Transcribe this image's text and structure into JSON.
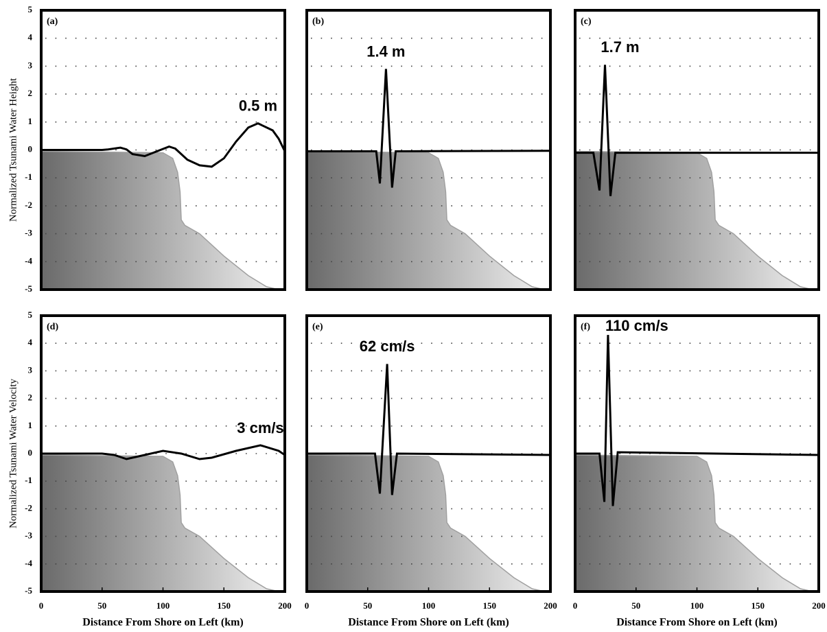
{
  "chart_data": [
    {
      "type": "line",
      "label": "(a)",
      "y_label": "Normalized Tsunami Water Height",
      "xlim": [
        0,
        200
      ],
      "ylim": [
        -5,
        5
      ],
      "yticks": [
        -5,
        -4,
        -3,
        -2,
        -1,
        0,
        1,
        2,
        3,
        4,
        5
      ],
      "ytick_labels": true,
      "grid": true,
      "series": [
        {
          "type": "line",
          "color": "#000000",
          "x": [
            0,
            20,
            40,
            50,
            55,
            65,
            70,
            75,
            85,
            95,
            105,
            110,
            120,
            130,
            140,
            150,
            160,
            170,
            178,
            190,
            195,
            200
          ],
          "values": [
            0,
            0,
            0,
            0,
            0.02,
            0.08,
            0.02,
            -0.15,
            -0.22,
            -0.05,
            0.12,
            0.05,
            -0.35,
            -0.55,
            -0.6,
            -0.3,
            0.3,
            0.8,
            0.95,
            0.7,
            0.4,
            -0.05
          ]
        },
        {
          "type": "area",
          "color": "#a0a0a0",
          "x": [
            0,
            100,
            108,
            112,
            114,
            115,
            118,
            130,
            150,
            170,
            185,
            195,
            200
          ],
          "values": [
            -0.05,
            -0.1,
            -0.3,
            -0.8,
            -1.5,
            -2.5,
            -2.7,
            -3.0,
            -3.8,
            -4.5,
            -4.9,
            -5.0,
            -5.0
          ]
        }
      ],
      "annotations": [
        {
          "text": "0.5 m",
          "color": "#f03c1e"
        }
      ]
    },
    {
      "type": "line",
      "label": "(b)",
      "xlim": [
        0,
        200
      ],
      "ylim": [
        -5,
        5
      ],
      "yticks": [
        -5,
        -4,
        -3,
        -2,
        -1,
        0,
        1,
        2,
        3,
        4,
        5
      ],
      "ytick_labels": false,
      "grid": true,
      "series": [
        {
          "type": "line",
          "color": "#000000",
          "x": [
            0,
            57,
            60,
            65,
            70,
            73,
            200
          ],
          "values": [
            -0.05,
            -0.05,
            -1.2,
            2.9,
            -1.35,
            -0.05,
            -0.03
          ]
        },
        {
          "type": "area",
          "color": "#a0a0a0",
          "x": [
            0,
            100,
            108,
            112,
            114,
            115,
            118,
            130,
            150,
            170,
            185,
            195,
            200
          ],
          "values": [
            -0.05,
            -0.1,
            -0.3,
            -0.8,
            -1.5,
            -2.5,
            -2.7,
            -3.0,
            -3.8,
            -4.5,
            -4.9,
            -5.0,
            -5.0
          ]
        }
      ],
      "annotations": [
        {
          "text": "1.4 m",
          "color": "#f03c1e"
        }
      ]
    },
    {
      "type": "line",
      "label": "(c)",
      "xlim": [
        0,
        200
      ],
      "ylim": [
        -5,
        5
      ],
      "yticks": [
        -5,
        -4,
        -3,
        -2,
        -1,
        0,
        1,
        2,
        3,
        4,
        5
      ],
      "ytick_labels": false,
      "grid": true,
      "series": [
        {
          "type": "line",
          "color": "#000000",
          "x": [
            0,
            15,
            20,
            24.5,
            29,
            33,
            200
          ],
          "values": [
            -0.1,
            -0.1,
            -1.45,
            3.05,
            -1.65,
            -0.1,
            -0.1
          ]
        },
        {
          "type": "area",
          "color": "#a0a0a0",
          "x": [
            0,
            100,
            108,
            112,
            114,
            115,
            118,
            130,
            150,
            170,
            185,
            195,
            200
          ],
          "values": [
            -0.05,
            -0.1,
            -0.3,
            -0.8,
            -1.5,
            -2.5,
            -2.7,
            -3.0,
            -3.8,
            -4.5,
            -4.9,
            -5.0,
            -5.0
          ]
        }
      ],
      "annotations": [
        {
          "text": "1.7 m",
          "color": "#f03c1e"
        }
      ]
    },
    {
      "type": "line",
      "label": "(d)",
      "y_label": "Normalized Tsunami Water Velocity",
      "x_label": "Distance From Shore on Left (km)",
      "xlim": [
        0,
        200
      ],
      "ylim": [
        -5,
        5
      ],
      "yticks": [
        -5,
        -4,
        -3,
        -2,
        -1,
        0,
        1,
        2,
        3,
        4,
        5
      ],
      "ytick_labels": true,
      "grid": true,
      "xticks": [
        0,
        50,
        100,
        150,
        200
      ],
      "series": [
        {
          "type": "line",
          "color": "#000000",
          "x": [
            0,
            50,
            60,
            70,
            80,
            100,
            115,
            130,
            140,
            160,
            180,
            195,
            200
          ],
          "values": [
            0,
            0,
            -0.05,
            -0.2,
            -0.1,
            0.1,
            0,
            -0.2,
            -0.15,
            0.1,
            0.3,
            0.1,
            -0.05
          ]
        },
        {
          "type": "area",
          "color": "#a0a0a0",
          "x": [
            0,
            100,
            108,
            112,
            114,
            115,
            118,
            130,
            150,
            170,
            185,
            195,
            200
          ],
          "values": [
            -0.05,
            -0.1,
            -0.3,
            -0.8,
            -1.5,
            -2.5,
            -2.7,
            -3.0,
            -3.8,
            -4.5,
            -4.9,
            -5.0,
            -5.0
          ]
        }
      ],
      "annotations": [
        {
          "text": "3 cm/s",
          "color": "#4aa81e"
        }
      ]
    },
    {
      "type": "line",
      "label": "(e)",
      "x_label": "Distance From Shore on Left (km)",
      "xlim": [
        0,
        200
      ],
      "ylim": [
        -5,
        5
      ],
      "yticks": [
        -5,
        -4,
        -3,
        -2,
        -1,
        0,
        1,
        2,
        3,
        4,
        5
      ],
      "ytick_labels": false,
      "grid": true,
      "xticks": [
        0,
        50,
        100,
        150,
        200
      ],
      "series": [
        {
          "type": "line",
          "color": "#000000",
          "x": [
            0,
            56,
            60,
            66,
            70,
            74,
            200
          ],
          "values": [
            0,
            0,
            -1.45,
            3.25,
            -1.5,
            0,
            -0.05
          ]
        },
        {
          "type": "area",
          "color": "#a0a0a0",
          "x": [
            0,
            100,
            108,
            112,
            114,
            115,
            118,
            130,
            150,
            170,
            185,
            195,
            200
          ],
          "values": [
            -0.05,
            -0.1,
            -0.3,
            -0.8,
            -1.5,
            -2.5,
            -2.7,
            -3.0,
            -3.8,
            -4.5,
            -4.9,
            -5.0,
            -5.0
          ]
        }
      ],
      "annotations": [
        {
          "text": "62 cm/s",
          "color": "#4aa81e"
        }
      ]
    },
    {
      "type": "line",
      "label": "(f)",
      "x_label": "Distance From Shore on Left (km)",
      "xlim": [
        0,
        200
      ],
      "ylim": [
        -5,
        5
      ],
      "yticks": [
        -5,
        -4,
        -3,
        -2,
        -1,
        0,
        1,
        2,
        3,
        4,
        5
      ],
      "ytick_labels": false,
      "grid": true,
      "xticks": [
        0,
        50,
        100,
        150,
        200
      ],
      "series": [
        {
          "type": "line",
          "color": "#000000",
          "x": [
            0,
            20,
            24,
            27,
            31,
            35,
            200
          ],
          "values": [
            0,
            0,
            -1.75,
            4.3,
            -1.9,
            0.05,
            -0.05
          ]
        },
        {
          "type": "area",
          "color": "#a0a0a0",
          "x": [
            0,
            100,
            108,
            112,
            114,
            115,
            118,
            130,
            150,
            170,
            185,
            195,
            200
          ],
          "values": [
            -0.05,
            -0.1,
            -0.3,
            -0.8,
            -1.5,
            -2.5,
            -2.7,
            -3.0,
            -3.8,
            -4.5,
            -4.9,
            -5.0,
            -5.0
          ]
        }
      ],
      "annotations": [
        {
          "text": "110 cm/s",
          "color": "#4aa81e"
        }
      ]
    }
  ]
}
